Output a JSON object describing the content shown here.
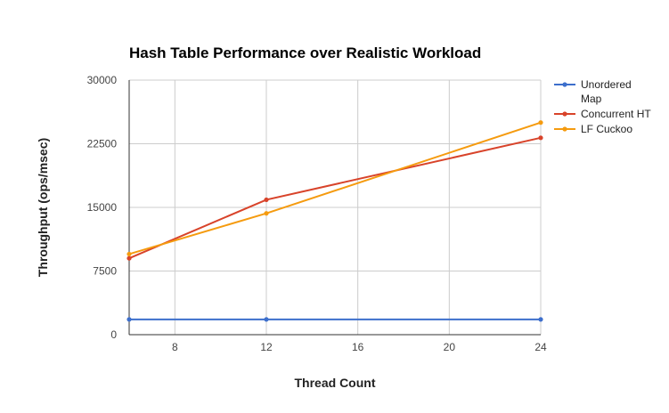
{
  "chart_data": {
    "type": "line",
    "title": "Hash Table Performance over Realistic Workload",
    "xlabel": "Thread Count",
    "ylabel": "Throughput (ops/msec)",
    "xlim": [
      6,
      24
    ],
    "ylim": [
      0,
      30000
    ],
    "x_ticks": [
      8,
      12,
      16,
      20,
      24
    ],
    "y_ticks": [
      0,
      7500,
      15000,
      22500,
      30000
    ],
    "grid": true,
    "legend_position": "right",
    "series": [
      {
        "name": "Unordered Map",
        "name_lines": [
          "Unordered",
          "Map"
        ],
        "color": "#3d6fcc",
        "x": [
          6,
          12,
          24
        ],
        "values": [
          1800,
          1800,
          1800
        ]
      },
      {
        "name": "Concurrent HT",
        "name_lines": [
          "Concurrent HT"
        ],
        "color": "#d8432a",
        "x": [
          6,
          12,
          24
        ],
        "values": [
          9000,
          15900,
          23200
        ]
      },
      {
        "name": "LF Cuckoo",
        "name_lines": [
          "LF Cuckoo"
        ],
        "color": "#f59b0f",
        "x": [
          6,
          12,
          24
        ],
        "values": [
          9500,
          14300,
          25000
        ]
      }
    ]
  }
}
